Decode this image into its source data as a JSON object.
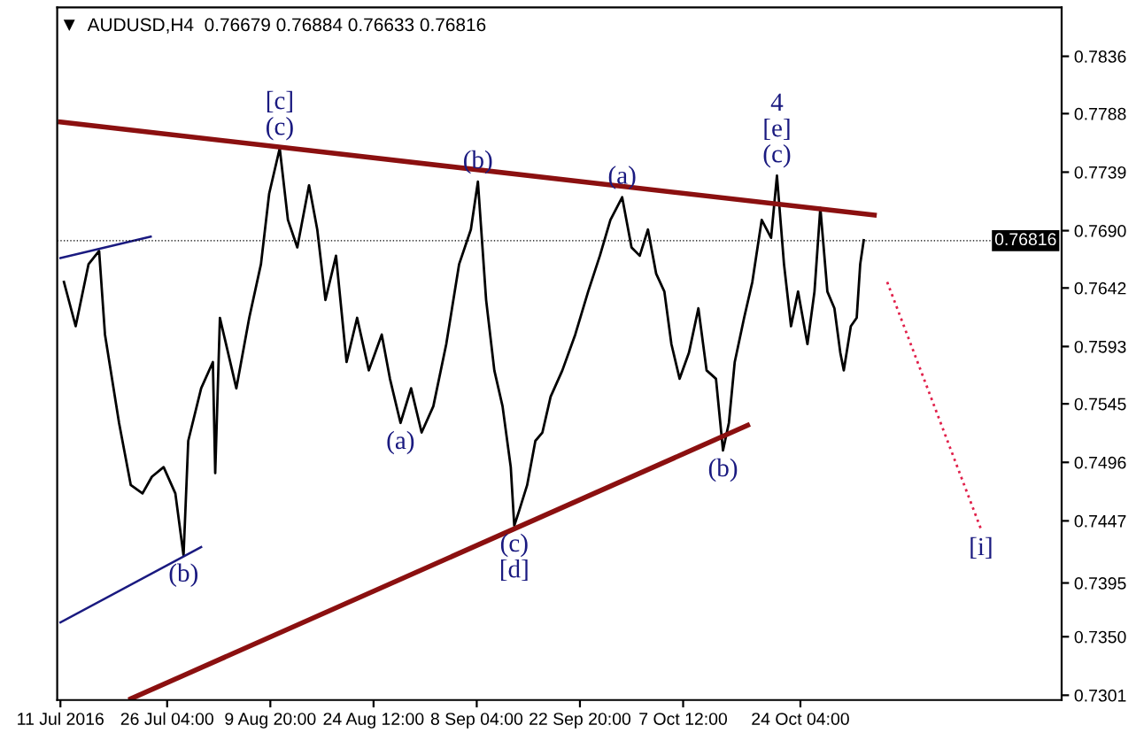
{
  "chart_data": {
    "type": "line",
    "title": "AUDUSD,H4  0.76679 0.76884 0.76633 0.76816",
    "series": [
      {
        "color": "#000000",
        "x": [
          "2016-07-11T12:00",
          "2016-07-13T04:00",
          "2016-07-15T00:00",
          "2016-07-16T12:00",
          "2016-07-17T08:00",
          "2016-07-19T08:00",
          "2016-07-21T00:00",
          "2016-07-22T16:00",
          "2016-07-24T00:00",
          "2016-07-25T16:00",
          "2016-07-27T08:00",
          "2016-07-28T12:00",
          "2016-07-29T04:00",
          "2016-07-31T00:00",
          "2016-08-01T16:00",
          "2016-08-02T00:00",
          "2016-08-02T16:00",
          "2016-08-05T00:00",
          "2016-08-06T20:00",
          "2016-08-08T12:00",
          "2016-08-09T16:00",
          "2016-08-11T04:00",
          "2016-08-12T08:00",
          "2016-08-13T16:00",
          "2016-08-15T08:00",
          "2016-08-16T12:00",
          "2016-08-17T16:00",
          "2016-08-19T04:00",
          "2016-08-20T16:00",
          "2016-08-22T04:00",
          "2016-08-23T20:00",
          "2016-08-25T16:00",
          "2016-08-26T20:00",
          "2016-08-28T08:00",
          "2016-08-29T20:00",
          "2016-08-31T08:00",
          "2016-09-02T00:00",
          "2016-09-03T20:00",
          "2016-09-05T16:00",
          "2016-09-07T08:00",
          "2016-09-08T08:00",
          "2016-09-09T12:00",
          "2016-09-10T16:00",
          "2016-09-11T20:00",
          "2016-09-13T00:00",
          "2016-09-13T12:00",
          "2016-09-14T04:00",
          "2016-09-15T08:00",
          "2016-09-16T12:00",
          "2016-09-17T12:00",
          "2016-09-18T16:00",
          "2016-09-20T08:00",
          "2016-09-22T04:00",
          "2016-09-24T00:00",
          "2016-09-25T16:00",
          "2016-09-27T04:00",
          "2016-09-28T20:00",
          "2016-09-30T04:00",
          "2016-10-01T08:00",
          "2016-10-02T12:00",
          "2016-10-03T16:00",
          "2016-10-04T20:00",
          "2016-10-05T20:00",
          "2016-10-07T00:00",
          "2016-10-08T08:00",
          "2016-10-09T16:00",
          "2016-10-10T20:00",
          "2016-10-12T04:00",
          "2016-10-13T04:00",
          "2016-10-14T00:00",
          "2016-10-14T20:00",
          "2016-10-16T04:00",
          "2016-10-17T08:00",
          "2016-10-18T16:00",
          "2016-10-20T00:00",
          "2016-10-20T20:00",
          "2016-10-21T20:00",
          "2016-10-22T20:00",
          "2016-10-23T20:00",
          "2016-10-25T04:00",
          "2016-10-26T04:00",
          "2016-10-27T00:00",
          "2016-10-28T00:00",
          "2016-10-29T00:00",
          "2016-10-29T20:00",
          "2016-10-30T08:00",
          "2016-10-31T08:00",
          "2016-11-01T04:00",
          "2016-11-01T16:00",
          "2016-11-02T04:00"
        ],
        "values": [
          0.7647,
          0.761,
          0.7662,
          0.7673,
          0.7603,
          0.7529,
          0.7477,
          0.747,
          0.7484,
          0.7492,
          0.747,
          0.7418,
          0.7514,
          0.7558,
          0.758,
          0.7487,
          0.7617,
          0.7558,
          0.7617,
          0.7662,
          0.7721,
          0.7759,
          0.7699,
          0.7676,
          0.7728,
          0.7691,
          0.7632,
          0.7669,
          0.758,
          0.7617,
          0.7573,
          0.7603,
          0.7566,
          0.7529,
          0.7558,
          0.7521,
          0.7543,
          0.7595,
          0.7662,
          0.7691,
          0.7731,
          0.7632,
          0.7573,
          0.7543,
          0.7492,
          0.7443,
          0.7455,
          0.7477,
          0.7514,
          0.7521,
          0.7551,
          0.7573,
          0.7603,
          0.7639,
          0.7669,
          0.7699,
          0.7718,
          0.7676,
          0.7669,
          0.7691,
          0.7654,
          0.7639,
          0.7595,
          0.7566,
          0.7588,
          0.7625,
          0.7573,
          0.7566,
          0.7506,
          0.7529,
          0.758,
          0.7617,
          0.7647,
          0.7699,
          0.7684,
          0.7736,
          0.7662,
          0.761,
          0.7639,
          0.7595,
          0.7639,
          0.7709,
          0.7639,
          0.7625,
          0.7588,
          0.7573,
          0.761,
          0.7617,
          0.7662,
          0.7682
        ]
      },
      {
        "color": "#8b1010",
        "x": [
          "2016-07-11T00:00",
          "2016-11-03T16:00"
        ],
        "values": [
          0.7781,
          0.7703
        ]
      },
      {
        "color": "#8b1010",
        "x": [
          "2016-07-21T00:00",
          "2016-10-16T16:00"
        ],
        "values": [
          0.7298,
          0.7527
        ]
      },
      {
        "color": "#1a1a80",
        "x": [
          "2016-07-11T00:00",
          "2016-07-23T20:00"
        ],
        "values": [
          0.7667,
          0.7685
        ]
      },
      {
        "color": "#1a1a80",
        "x": [
          "2016-07-11T00:00",
          "2016-07-31T00:00"
        ],
        "values": [
          0.7362,
          0.7425
        ]
      },
      {
        "color": "#e0204a",
        "line_style": "dotted",
        "x": [
          "2016-11-05T12:00",
          "2016-11-18T20:00"
        ],
        "values": [
          0.7647,
          0.744
        ]
      }
    ],
    "xlim": [
      "2016-07-10T13:00",
      "2016-11-30T07:00"
    ],
    "xticks": [
      {
        "value": "2016-07-11T00:00",
        "label": "11 Jul 2016"
      },
      {
        "value": "2016-07-26T04:00",
        "label": "26 Jul 04:00"
      },
      {
        "value": "2016-08-09T20:00",
        "label": "9 Aug 20:00"
      },
      {
        "value": "2016-08-24T12:00",
        "label": "24 Aug 12:00"
      },
      {
        "value": "2016-09-08T04:00",
        "label": "8 Sep 04:00"
      },
      {
        "value": "2016-09-22T20:00",
        "label": "22 Sep 20:00"
      },
      {
        "value": "2016-10-07T12:00",
        "label": "7 Oct 12:00"
      },
      {
        "value": "2016-10-24T04:00",
        "label": "24 Oct 04:00"
      }
    ],
    "ylim": [
      0.7297,
      0.7877
    ],
    "yticks": [
      {
        "value": 0.7301,
        "label": "0.7301"
      },
      {
        "value": 0.735,
        "label": "0.7350"
      },
      {
        "value": 0.7395,
        "label": "0.7395"
      },
      {
        "value": 0.7447,
        "label": "0.7447"
      },
      {
        "value": 0.7496,
        "label": "0.7496"
      },
      {
        "value": 0.7545,
        "label": "0.7545"
      },
      {
        "value": 0.7593,
        "label": "0.7593"
      },
      {
        "value": 0.7642,
        "label": "0.7642"
      },
      {
        "value": 0.769,
        "label": "0.7690"
      },
      {
        "value": 0.7739,
        "label": "0.7739"
      },
      {
        "value": 0.7788,
        "label": "0.7788"
      },
      {
        "value": 0.7836,
        "label": "0.7836"
      }
    ],
    "ref_lines": [
      {
        "axis": "y",
        "value": 0.76816,
        "label": "0.76816",
        "color": "#000000",
        "line_style": "dotted"
      }
    ],
    "annotations": [
      {
        "text": "[c]",
        "x": "2016-08-11T04:00",
        "y": 0.7759
      },
      {
        "text": "(c)",
        "x": "2016-08-11T04:00",
        "y": 0.7759
      },
      {
        "text": "(b)",
        "x": "2016-09-08T08:00",
        "y": 0.7731
      },
      {
        "text": "(a)",
        "x": "2016-09-28T20:00",
        "y": 0.7718
      },
      {
        "text": "4",
        "x": "2016-10-20T20:00",
        "y": 0.7736
      },
      {
        "text": "[e]",
        "x": "2016-10-20T20:00",
        "y": 0.7736
      },
      {
        "text": "(c)",
        "x": "2016-10-20T20:00",
        "y": 0.7736
      },
      {
        "text": "(b)",
        "x": "2016-07-28T12:00",
        "y": 0.7418
      },
      {
        "text": "(a)",
        "x": "2016-08-28T08:00",
        "y": 0.7529
      },
      {
        "text": "(c)",
        "x": "2016-09-13T12:00",
        "y": 0.7443
      },
      {
        "text": "[d]",
        "x": "2016-09-13T12:00",
        "y": 0.7443
      },
      {
        "text": "(b)",
        "x": "2016-10-13T04:00",
        "y": 0.7506
      },
      {
        "text": "[i]",
        "x": "2016-11-18T20:00",
        "y": 0.744
      }
    ],
    "grid": false,
    "legend": false
  }
}
